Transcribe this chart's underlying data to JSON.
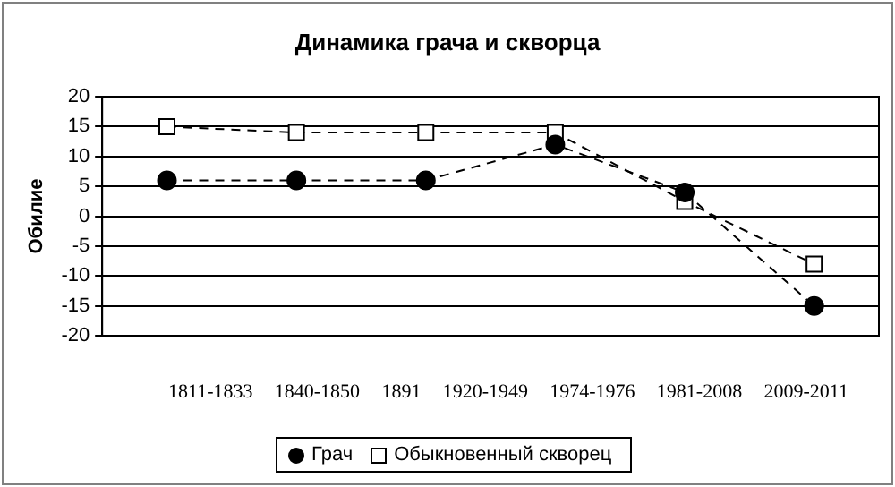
{
  "chart_data": {
    "type": "line",
    "title": "Динамика грача и скворца",
    "ylabel": "Обилие",
    "categories": [
      null,
      null,
      null,
      null,
      null,
      null
    ],
    "annotations": [
      "1811-1833",
      "1840-1850",
      "1891",
      "1920-1949",
      "1974-1976",
      "1981-2008",
      "2009-2011"
    ],
    "series": [
      {
        "name": "Грач",
        "color": "#000000",
        "marker": "circle",
        "values": [
          6,
          6,
          6,
          12,
          4,
          -15
        ]
      },
      {
        "name": "Обыкновенный скворец",
        "color": "#000000",
        "marker": "square",
        "values": [
          15,
          14,
          14,
          14,
          2.5,
          -8
        ]
      }
    ],
    "ylim": [
      -20,
      20
    ],
    "yticks": [
      -20,
      -15,
      -10,
      -5,
      0,
      5,
      10,
      15,
      20
    ],
    "grid": "y",
    "legend": "bottom",
    "line_style": "dashed"
  }
}
